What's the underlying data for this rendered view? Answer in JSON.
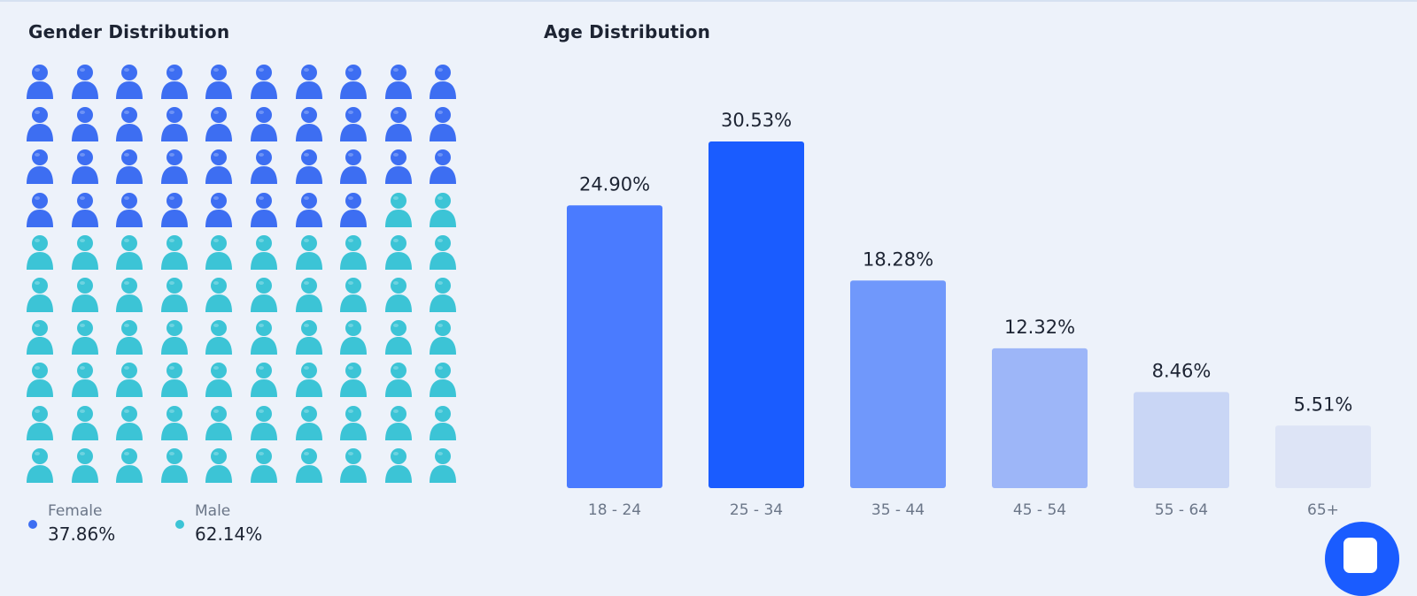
{
  "gender": {
    "title": "Gender Distribution",
    "female": {
      "label": "Female",
      "value": "37.86%",
      "count": 38,
      "color": "#3d6ef2"
    },
    "male": {
      "label": "Male",
      "value": "62.14%",
      "count": 62,
      "color": "#3cc4d6"
    },
    "icon": "person-icon"
  },
  "age": {
    "title": "Age Distribution"
  },
  "chart_data": {
    "type": "bar",
    "categories": [
      "18 - 24",
      "25 - 34",
      "35 - 44",
      "45 - 54",
      "55 - 64",
      "65+"
    ],
    "values": [
      24.9,
      30.53,
      18.28,
      12.32,
      8.46,
      5.51
    ],
    "labels": [
      "24.90%",
      "30.53%",
      "18.28%",
      "12.32%",
      "8.46%",
      "5.51%"
    ],
    "colors": [
      "#4a7bff",
      "#1a5cff",
      "#7098fb",
      "#9db6f8",
      "#c9d6f5",
      "#dde4f6"
    ],
    "title": "Age Distribution",
    "xlabel": "",
    "ylabel": "",
    "ylim": [
      0,
      30.53
    ]
  },
  "fab": {
    "icon": "chat-icon"
  }
}
